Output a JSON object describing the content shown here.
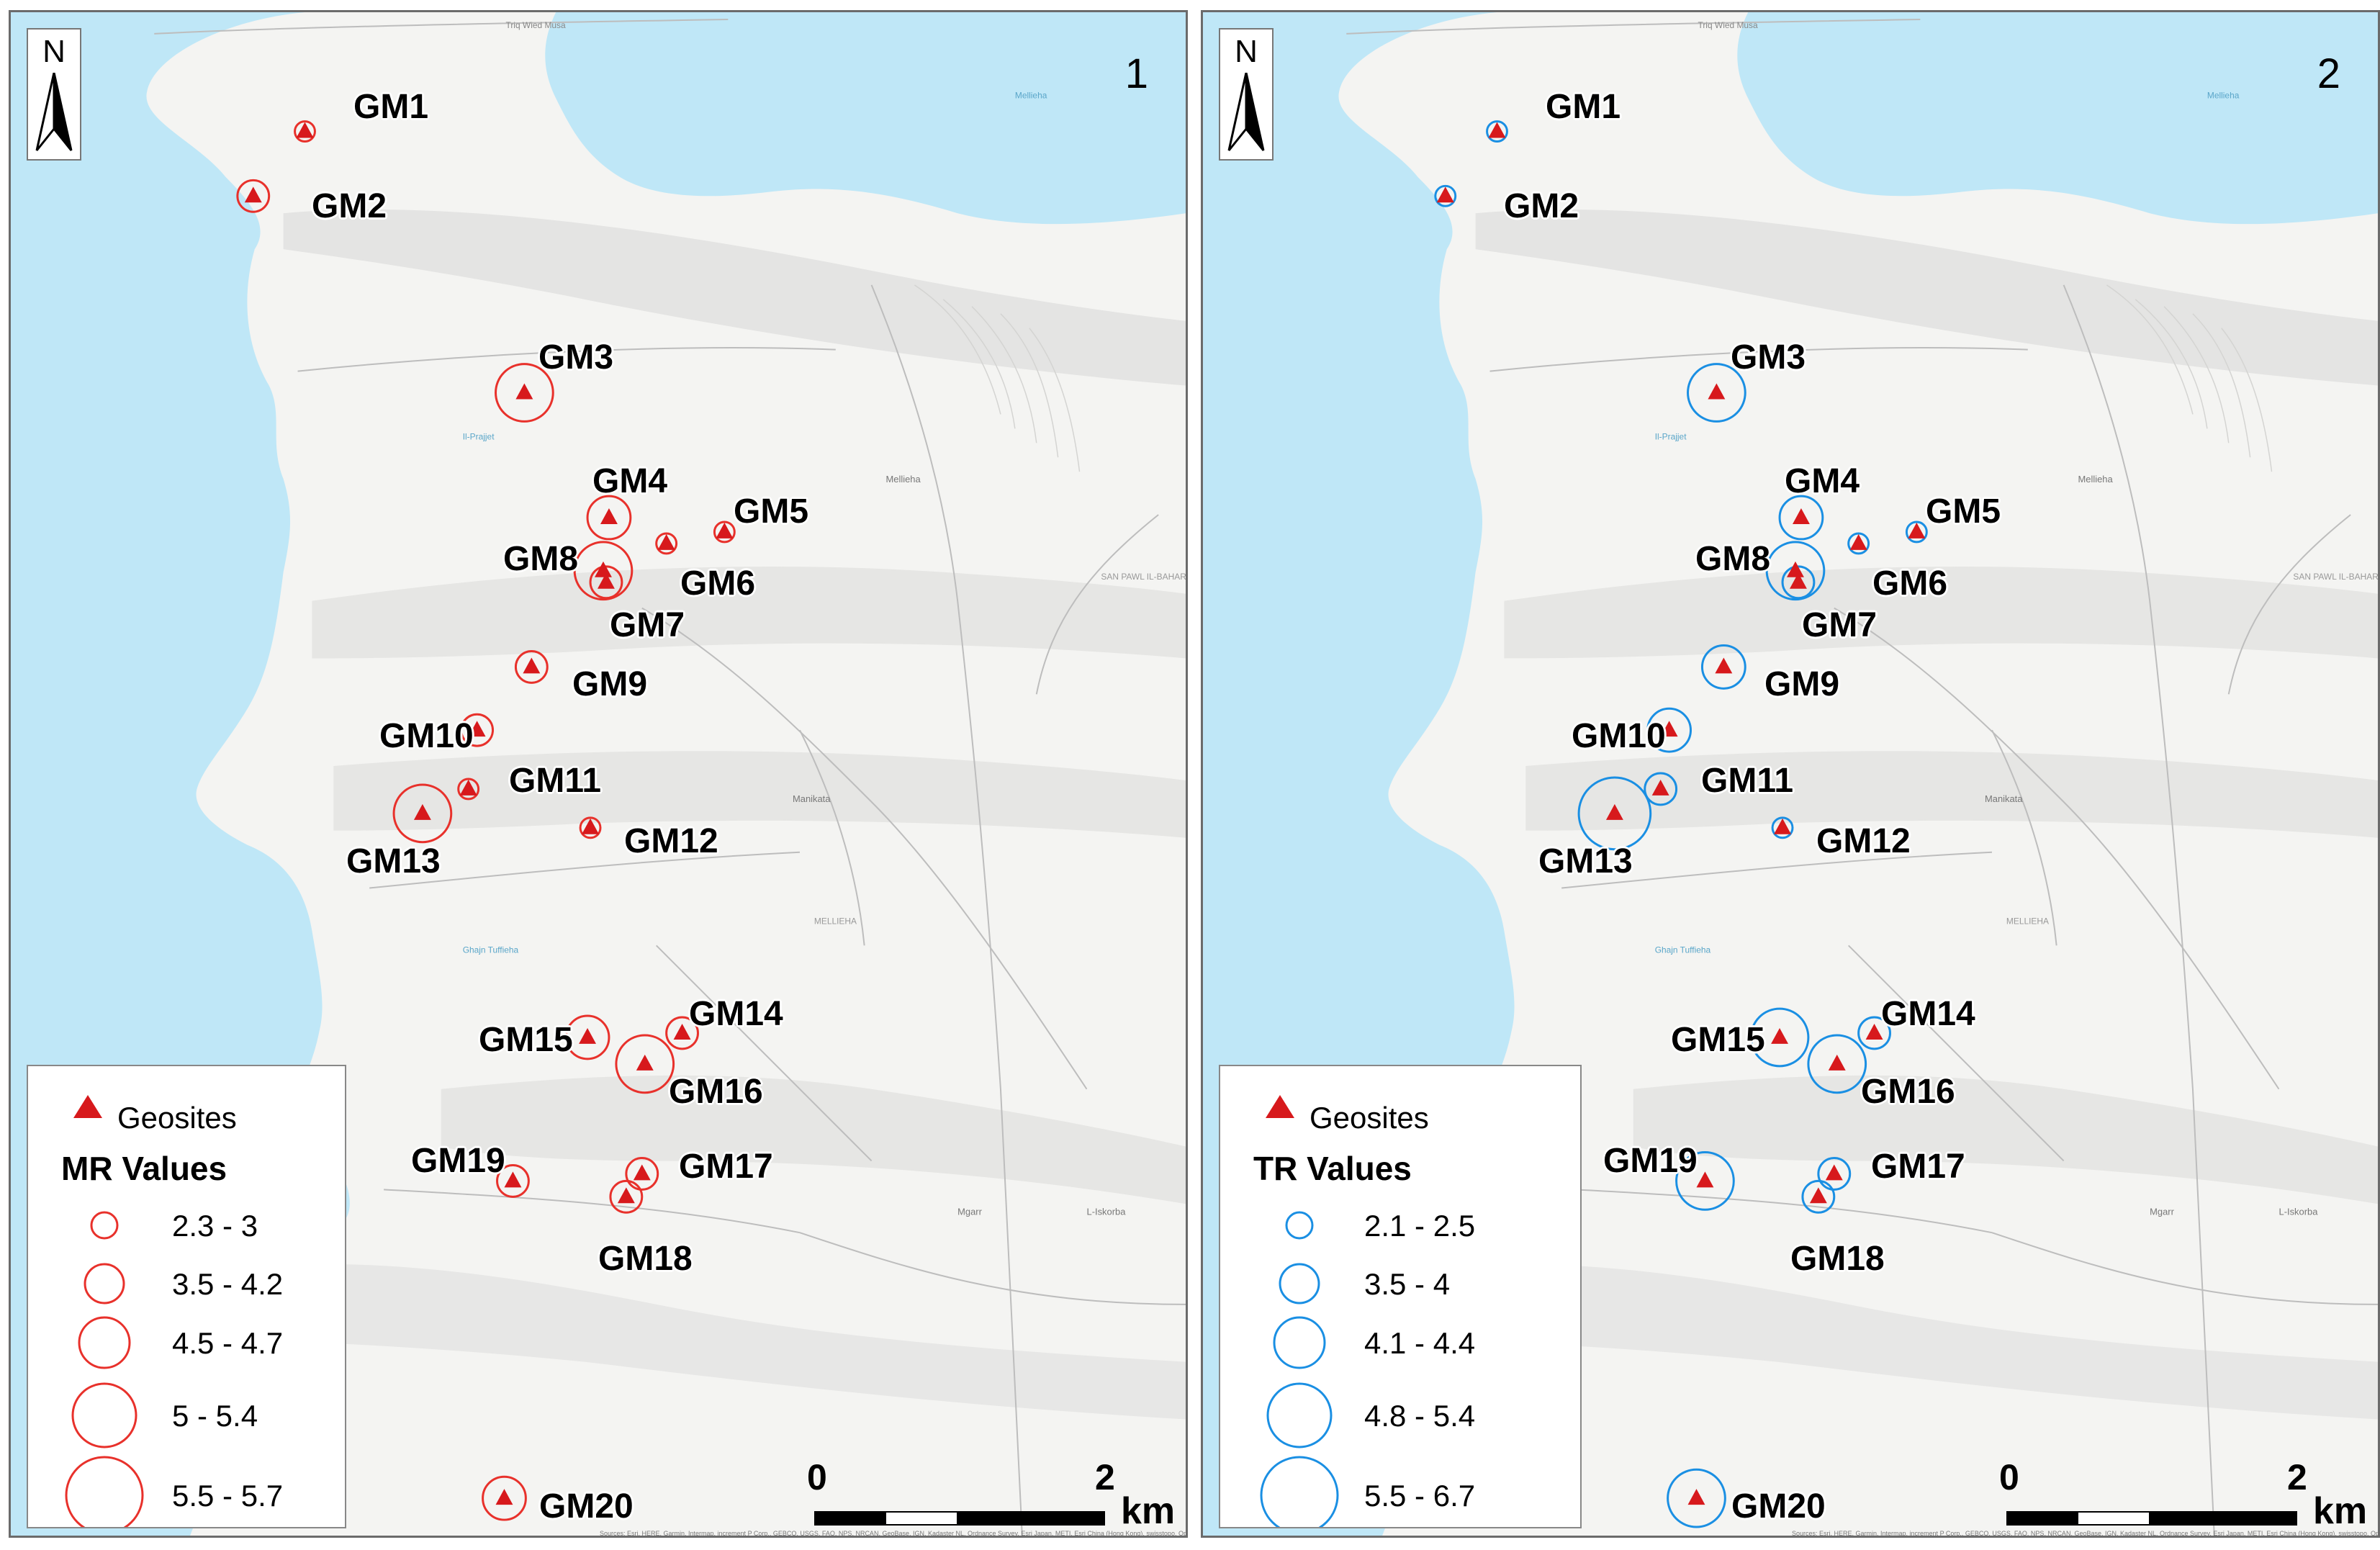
{
  "panels": [
    {
      "number": "1",
      "ring_color": "#e8312b",
      "legend": {
        "geosites_label": "Geosites",
        "title": "MR Values",
        "classes": [
          "2.3 - 3",
          "3.5 - 4.2",
          "4.5 - 4.7",
          "5 - 5.4",
          "5.5 - 5.7"
        ]
      },
      "scale": {
        "start": "0",
        "end": "2",
        "unit": "km"
      }
    },
    {
      "number": "2",
      "ring_color": "#1a8fe3",
      "legend": {
        "geosites_label": "Geosites",
        "title": "TR Values",
        "classes": [
          "2.1 - 2.5",
          "3.5 - 4",
          "4.1 - 4.4",
          "4.8 - 5.4",
          "5.5 - 6.7"
        ]
      },
      "scale": {
        "start": "0",
        "end": "2",
        "unit": "km"
      }
    }
  ],
  "north_label": "N",
  "sites": [
    "GM1",
    "GM2",
    "GM3",
    "GM4",
    "GM5",
    "GM6",
    "GM7",
    "GM8",
    "GM9",
    "GM10",
    "GM11",
    "GM12",
    "GM13",
    "GM14",
    "GM15",
    "GM16",
    "GM17",
    "GM18",
    "GM19",
    "GM20"
  ],
  "mr_class": [
    1,
    2,
    4,
    3,
    1,
    1,
    2,
    4,
    2,
    2,
    1,
    1,
    4,
    2,
    3,
    4,
    2,
    2,
    2,
    3
  ],
  "tr_class": [
    1,
    1,
    4,
    3,
    1,
    1,
    2,
    4,
    3,
    3,
    2,
    1,
    5,
    2,
    4,
    4,
    2,
    2,
    4,
    4
  ],
  "map_labels": {
    "tal_wied_musa": "Triq Wied Musa",
    "mellieha_bay": "Mellieha",
    "il_prajjet": "Il-Prajjet",
    "mellieha_town": "Mellieha",
    "manikata": "Manikata",
    "mgarr": "Mgarr",
    "l_iskorba": "L-Iskorba",
    "san_pawl": "SAN PAWL IL-BAHAR",
    "mellieha_road": "MELLIEHA",
    "ghajn_tuffieha": "Ghajn Tuffieha"
  },
  "attribution": "Sources: Esri, HERE, Garmin, Intermap, increment P Corp., GEBCO, USGS, FAO, NPS, NRCAN, GeoBase, IGN, Kadaster NL, Ordnance Survey, Esri Japan, METI, Esri China (Hong Kong), swisstopo, OpenStreetMap contributors, and the GIS User Community",
  "colors": {
    "sea": "#bfe7f7",
    "land": "#f4f4f2",
    "relief": "#dcdcda",
    "marker": "#d7191c"
  }
}
